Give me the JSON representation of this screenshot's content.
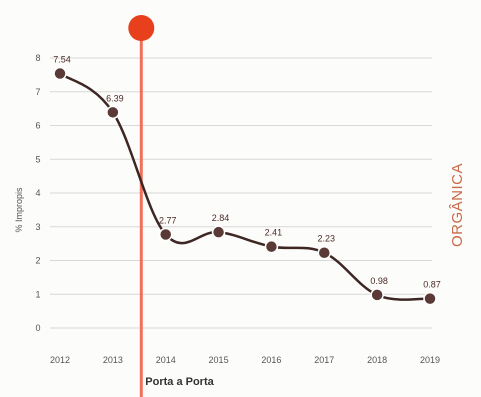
{
  "colors": {
    "line": "#3d2623",
    "marker": "#5a3a36",
    "grid": "#d8d8d8",
    "event": "#f0705a",
    "event_dot": "#e8401c",
    "side_title": "#c96a4a"
  },
  "chart_data": {
    "type": "line",
    "ylabel": "% Impropis",
    "side_title": "ORGÂNICA",
    "categories": [
      "2012",
      "2013",
      "2014",
      "2015",
      "2016",
      "2017",
      "2018",
      "2019"
    ],
    "tick_labels": [
      "2012",
      "2013",
      "2014",
      "2015",
      "2016",
      "2017",
      "2018",
      "2019"
    ],
    "values": [
      7.54,
      6.39,
      2.77,
      2.84,
      2.41,
      2.23,
      0.98,
      0.87
    ],
    "value_labels": [
      "7.54",
      "6.39",
      "2.77",
      "2.84",
      "2.41",
      "2.23",
      "0.98",
      "0.87"
    ],
    "y_ticks": [
      "8",
      "7",
      "6",
      "5",
      "4",
      "3",
      "2",
      "1",
      "0"
    ],
    "ylim": [
      0,
      8
    ],
    "grid": true,
    "event": {
      "label": "Porta a Porta",
      "between": [
        "2013",
        "2014"
      ]
    }
  }
}
